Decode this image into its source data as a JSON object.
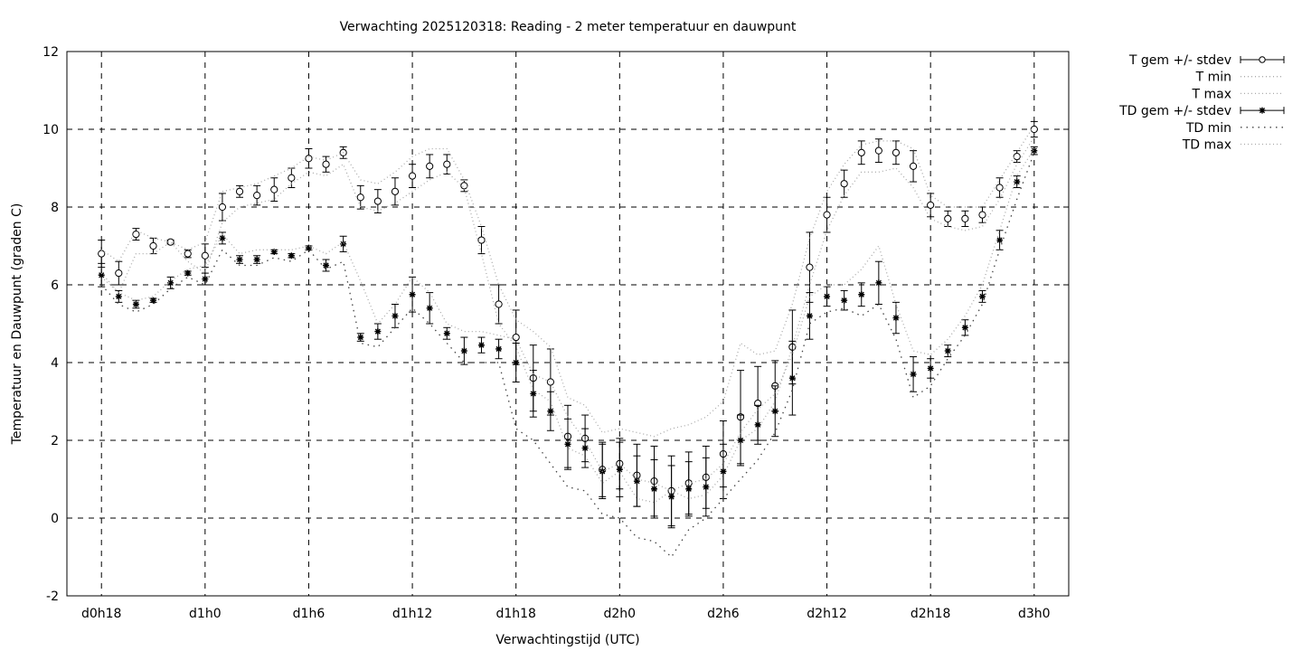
{
  "chart_data": {
    "type": "line",
    "title": "Verwachting 2025120318: Reading - 2 meter temperatuur en dauwpunt",
    "xlabel": "Verwachtingstijd (UTC)",
    "ylabel": "Temperatuur en Dauwpunt (graden C)",
    "ylim": [
      -2,
      12
    ],
    "yticks": [
      -2,
      0,
      2,
      4,
      6,
      8,
      10,
      12
    ],
    "xlim": [
      "d0h16",
      "d3h2"
    ],
    "xticks": [
      "d0h18",
      "d1h0",
      "d1h6",
      "d1h12",
      "d1h18",
      "d2h0",
      "d2h6",
      "d2h12",
      "d2h18",
      "d3h0"
    ],
    "grid": true,
    "legend_position": "outside-top-right",
    "x_start": "d0h18",
    "x_step_hours": 1,
    "series": [
      {
        "name": "T gem +/- stdev",
        "style": "errorbar-circle",
        "values": [
          6.8,
          6.3,
          7.3,
          7.0,
          7.1,
          6.8,
          6.75,
          8.0,
          8.4,
          8.3,
          8.45,
          8.75,
          9.25,
          9.1,
          9.4,
          8.25,
          8.15,
          8.4,
          8.8,
          9.05,
          9.1,
          8.55,
          7.15,
          5.5,
          4.65,
          3.6,
          3.5,
          2.1,
          2.05,
          1.25,
          1.4,
          1.1,
          0.95,
          0.7,
          0.9,
          1.05,
          1.65,
          2.6,
          2.95,
          3.4,
          4.4,
          6.45,
          7.8,
          8.6,
          9.4,
          9.45,
          9.4,
          9.05,
          8.05,
          7.7,
          7.7,
          7.8,
          8.5,
          9.3,
          10.0
        ],
        "stdev": [
          0.35,
          0.3,
          0.15,
          0.2,
          0.05,
          0.1,
          0.3,
          0.35,
          0.15,
          0.25,
          0.3,
          0.25,
          0.25,
          0.2,
          0.15,
          0.3,
          0.3,
          0.35,
          0.3,
          0.3,
          0.25,
          0.15,
          0.35,
          0.5,
          0.7,
          0.85,
          0.85,
          0.8,
          0.6,
          0.7,
          0.65,
          0.8,
          0.9,
          0.9,
          0.8,
          0.8,
          0.85,
          1.2,
          0.95,
          0.65,
          0.95,
          0.9,
          0.45,
          0.35,
          0.3,
          0.3,
          0.3,
          0.4,
          0.3,
          0.2,
          0.2,
          0.2,
          0.25,
          0.15,
          0.2
        ]
      },
      {
        "name": "T min",
        "style": "dotted-light",
        "values": [
          6.2,
          5.8,
          6.8,
          6.8,
          7.1,
          6.6,
          6.3,
          7.6,
          8.0,
          8.1,
          8.2,
          8.6,
          8.9,
          8.8,
          9.1,
          8.0,
          7.9,
          8.1,
          8.4,
          8.7,
          8.9,
          8.5,
          6.8,
          5.0,
          4.4,
          3.3,
          3.0,
          1.8,
          1.6,
          0.9,
          1.2,
          0.5,
          0.4,
          0.7,
          0.5,
          0.6,
          1.1,
          2.0,
          2.3,
          3.0,
          4.4,
          6.0,
          7.4,
          8.3,
          8.9,
          8.9,
          9.0,
          8.5,
          7.7,
          7.5,
          7.4,
          7.5,
          8.2,
          9.1,
          9.8
        ]
      },
      {
        "name": "T max",
        "style": "dotted-light",
        "values": [
          6.9,
          6.6,
          7.4,
          7.2,
          7.1,
          6.9,
          7.1,
          8.4,
          8.5,
          8.6,
          8.8,
          9.0,
          9.3,
          9.2,
          9.4,
          8.7,
          8.6,
          8.9,
          9.3,
          9.5,
          9.5,
          8.7,
          7.5,
          6.0,
          5.1,
          4.8,
          4.4,
          3.1,
          2.9,
          2.2,
          2.3,
          2.2,
          2.1,
          2.3,
          2.4,
          2.6,
          3.0,
          4.5,
          4.2,
          4.3,
          5.5,
          7.2,
          8.4,
          9.1,
          9.6,
          9.7,
          9.7,
          9.5,
          8.3,
          8.0,
          8.0,
          8.0,
          8.7,
          9.4,
          10.1
        ]
      },
      {
        "name": "TD gem +/- stdev",
        "style": "errorbar-star",
        "values": [
          6.25,
          5.7,
          5.5,
          5.6,
          6.05,
          6.3,
          6.15,
          7.2,
          6.65,
          6.65,
          6.85,
          6.75,
          6.95,
          6.5,
          7.05,
          4.65,
          4.8,
          5.2,
          5.75,
          5.4,
          4.75,
          4.3,
          4.45,
          4.35,
          4.0,
          3.2,
          2.75,
          1.9,
          1.8,
          1.2,
          1.25,
          0.95,
          0.75,
          0.55,
          0.75,
          0.8,
          1.2,
          2.0,
          2.4,
          2.75,
          3.6,
          5.2,
          5.7,
          5.6,
          5.75,
          6.05,
          5.15,
          3.7,
          3.85,
          4.3,
          4.9,
          5.7,
          7.15,
          8.65,
          9.45
        ],
        "stdev": [
          0.3,
          0.15,
          0.1,
          0.05,
          0.15,
          0.05,
          0.15,
          0.15,
          0.1,
          0.1,
          0.05,
          0.05,
          0.05,
          0.15,
          0.2,
          0.1,
          0.2,
          0.3,
          0.45,
          0.4,
          0.15,
          0.35,
          0.2,
          0.25,
          0.5,
          0.6,
          0.5,
          0.65,
          0.5,
          0.7,
          0.7,
          0.65,
          0.75,
          0.8,
          0.7,
          0.75,
          0.7,
          0.65,
          0.5,
          0.65,
          0.95,
          0.6,
          0.25,
          0.25,
          0.3,
          0.55,
          0.4,
          0.45,
          0.25,
          0.15,
          0.2,
          0.15,
          0.25,
          0.15,
          0.1
        ]
      },
      {
        "name": "TD min",
        "style": "dotted-dark",
        "values": [
          6.0,
          5.5,
          5.3,
          5.5,
          5.9,
          6.2,
          6.0,
          6.9,
          6.5,
          6.5,
          6.7,
          6.6,
          6.9,
          6.4,
          6.6,
          4.5,
          4.4,
          4.9,
          5.4,
          5.0,
          4.5,
          4.0,
          4.0,
          4.0,
          2.3,
          2.0,
          1.4,
          0.8,
          0.7,
          0.1,
          0.0,
          -0.5,
          -0.6,
          -1.0,
          -0.3,
          0.0,
          0.5,
          1.0,
          1.5,
          2.2,
          3.3,
          5.0,
          5.3,
          5.4,
          5.2,
          5.5,
          4.6,
          3.1,
          3.4,
          4.1,
          4.7,
          5.5,
          6.9,
          8.2,
          9.4
        ]
      },
      {
        "name": "TD max",
        "style": "dotted-light",
        "values": [
          6.3,
          5.8,
          5.6,
          5.7,
          6.1,
          6.4,
          6.5,
          7.3,
          6.8,
          6.9,
          6.9,
          6.9,
          7.0,
          6.8,
          7.1,
          6.1,
          5.0,
          5.5,
          6.2,
          5.8,
          5.0,
          4.8,
          4.8,
          4.7,
          4.6,
          3.7,
          3.5,
          2.6,
          2.0,
          1.2,
          1.4,
          1.0,
          0.9,
          0.7,
          0.9,
          1.0,
          1.4,
          2.2,
          2.8,
          3.2,
          4.2,
          5.7,
          6.0,
          6.0,
          6.4,
          7.0,
          5.5,
          4.3,
          4.2,
          4.6,
          5.2,
          6.0,
          7.4,
          8.8,
          9.5
        ]
      }
    ]
  }
}
